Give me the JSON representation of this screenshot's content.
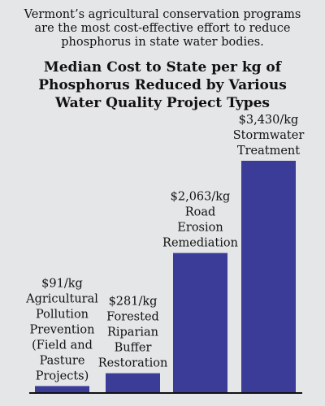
{
  "intro_text": "Vermont’s agricultural conservation programs are the most cost-effective effort to reduce phosphorus in state water bodies.",
  "colors": {
    "background": "#e5e6e8",
    "bar": "#3a3c98"
  },
  "chart_data": {
    "type": "bar",
    "title": "Median Cost to State per kg of Phosphorus Reduced by Various Water Quality Project Types",
    "xlabel": "",
    "ylabel": "",
    "grid": false,
    "categories": [
      "Agricultural Pollution Prevention (Field and Pasture Projects)",
      "Forested Riparian Buffer Restoration",
      "Road Erosion Remediation",
      "Stormwater Treatment"
    ],
    "category_lines": [
      [
        "Agricultural",
        "Pollution",
        "Prevention",
        "(Field and",
        "Pasture",
        "Projects)"
      ],
      [
        "Forested",
        "Riparian",
        "Buffer",
        "Restoration"
      ],
      [
        "Road",
        "Erosion",
        "Remediation"
      ],
      [
        "Stormwater",
        "Treatment"
      ]
    ],
    "values": [
      91,
      281,
      2063,
      3430
    ],
    "value_labels": [
      "$91/kg",
      "$281/kg",
      "$2,063/kg",
      "$3,430/kg"
    ],
    "unit": "$/kg",
    "ylim": [
      0,
      3430
    ]
  }
}
